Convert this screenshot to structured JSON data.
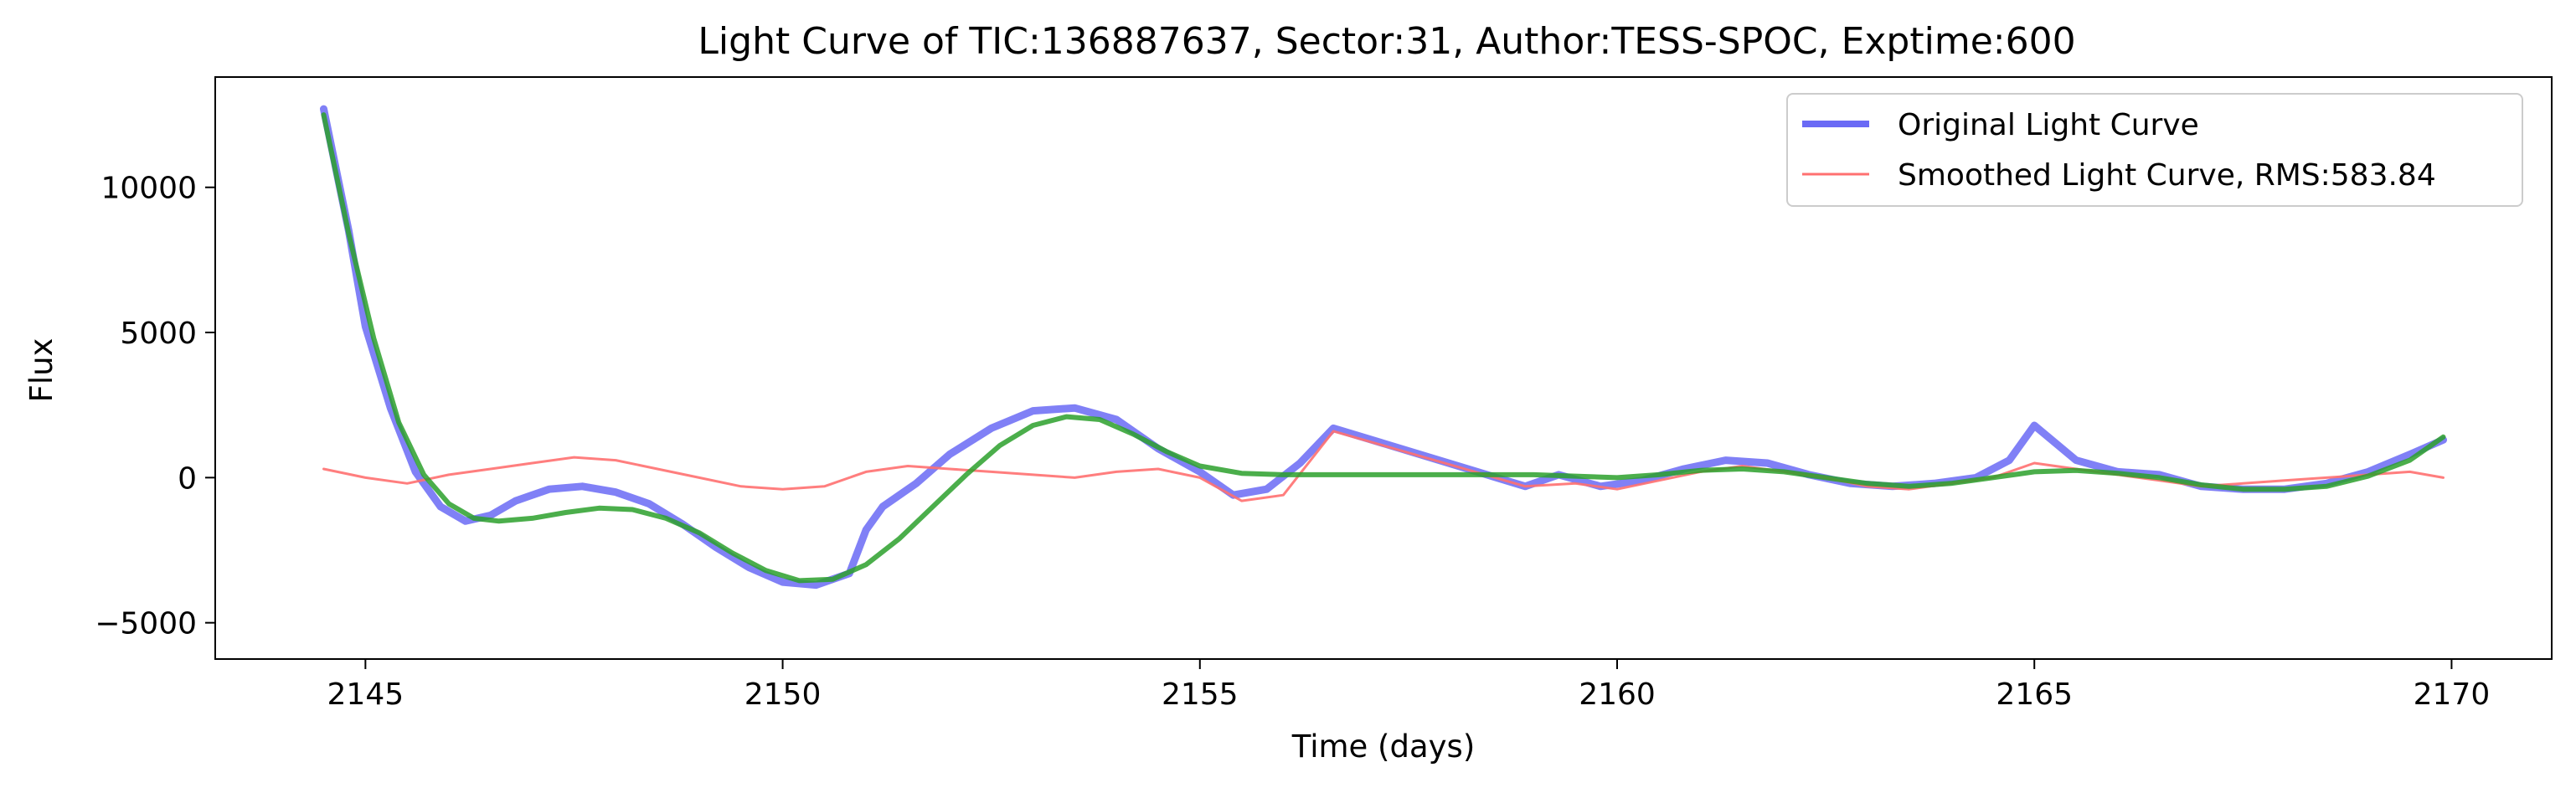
{
  "chart_data": {
    "type": "line",
    "title": "Light Curve of TIC:136887637, Sector:31, Author:TESS-SPOC, Exptime:600",
    "xlabel": "Time (days)",
    "ylabel": "Flux",
    "xlim": [
      2143.2,
      2171.2
    ],
    "ylim": [
      -6250,
      13800
    ],
    "xticks": [
      2145,
      2150,
      2155,
      2160,
      2165,
      2170
    ],
    "xtick_labels": [
      "2145",
      "2150",
      "2155",
      "2160",
      "2165",
      "2170"
    ],
    "yticks": [
      -5000,
      0,
      5000,
      10000
    ],
    "ytick_labels": [
      "−5000",
      "0",
      "5000",
      "10000"
    ],
    "grid": false,
    "legend_position": "top-right",
    "legend": [
      {
        "label": "Original Light Curve",
        "color": "#6a6af5"
      },
      {
        "label": "Smoothed Light Curve, RMS:583.84",
        "color": "#ff7070"
      }
    ],
    "series": [
      {
        "name": "Original Light Curve",
        "color": "#6a6af5",
        "x": [
          2144.5,
          2144.8,
          2145.0,
          2145.3,
          2145.6,
          2145.9,
          2146.2,
          2146.5,
          2146.8,
          2147.2,
          2147.6,
          2148.0,
          2148.4,
          2148.8,
          2149.2,
          2149.6,
          2150.0,
          2150.4,
          2150.8,
          2151.0,
          2151.2,
          2151.6,
          2152.0,
          2152.5,
          2153.0,
          2153.5,
          2154.0,
          2154.5,
          2155.0,
          2155.4,
          2155.8,
          2156.2,
          2156.6,
          2158.9,
          2159.3,
          2159.8,
          2160.3,
          2160.8,
          2161.3,
          2161.8,
          2162.3,
          2162.8,
          2163.3,
          2163.8,
          2164.3,
          2164.7,
          2165.0,
          2165.5,
          2166.0,
          2166.5,
          2167.0,
          2167.5,
          2168.0,
          2168.5,
          2169.0,
          2169.5,
          2169.9
        ],
        "y": [
          12700,
          8500,
          5200,
          2400,
          200,
          -1000,
          -1500,
          -1300,
          -800,
          -400,
          -300,
          -500,
          -900,
          -1600,
          -2400,
          -3100,
          -3600,
          -3700,
          -3300,
          -1800,
          -1000,
          -200,
          800,
          1700,
          2300,
          2400,
          2000,
          1000,
          200,
          -600,
          -400,
          500,
          1700,
          -300,
          100,
          -300,
          -100,
          300,
          600,
          500,
          100,
          -200,
          -300,
          -200,
          0,
          600,
          1800,
          600,
          200,
          100,
          -300,
          -400,
          -400,
          -200,
          200,
          800,
          1300
        ]
      },
      {
        "name": "Smoothed Light Curve, RMS:583.84",
        "color": "#ff7070",
        "x": [
          2144.5,
          2145.0,
          2145.5,
          2146.0,
          2146.5,
          2147.0,
          2147.5,
          2148.0,
          2148.5,
          2149.0,
          2149.5,
          2150.0,
          2150.5,
          2151.0,
          2151.5,
          2152.0,
          2152.5,
          2153.0,
          2153.5,
          2154.0,
          2154.5,
          2155.0,
          2155.5,
          2156.0,
          2156.6,
          2158.9,
          2159.5,
          2160.0,
          2160.5,
          2161.0,
          2161.5,
          2162.0,
          2162.5,
          2163.0,
          2163.5,
          2164.0,
          2164.5,
          2165.0,
          2165.5,
          2166.0,
          2166.5,
          2167.0,
          2167.5,
          2168.0,
          2168.5,
          2169.0,
          2169.5,
          2169.9
        ],
        "y": [
          300,
          0,
          -200,
          100,
          300,
          500,
          700,
          600,
          300,
          0,
          -300,
          -400,
          -300,
          200,
          400,
          300,
          200,
          100,
          0,
          200,
          300,
          0,
          -800,
          -600,
          1600,
          -300,
          -200,
          -400,
          -100,
          200,
          400,
          200,
          0,
          -300,
          -400,
          -200,
          0,
          500,
          300,
          100,
          -100,
          -300,
          -200,
          -100,
          0,
          100,
          200,
          0
        ]
      },
      {
        "name": "",
        "color": "#2ca02c",
        "x": [
          2144.5,
          2144.8,
          2145.1,
          2145.4,
          2145.7,
          2146.0,
          2146.3,
          2146.6,
          2147.0,
          2147.4,
          2147.8,
          2148.2,
          2148.6,
          2149.0,
          2149.4,
          2149.8,
          2150.2,
          2150.6,
          2151.0,
          2151.4,
          2151.8,
          2152.2,
          2152.6,
          2153.0,
          2153.4,
          2153.8,
          2154.2,
          2154.6,
          2155.0,
          2155.5,
          2156.0,
          2157.0,
          2158.0,
          2159.0,
          2159.5,
          2160.0,
          2160.5,
          2161.0,
          2161.5,
          2162.0,
          2162.5,
          2163.0,
          2163.5,
          2164.0,
          2164.5,
          2165.0,
          2165.5,
          2166.0,
          2166.5,
          2167.0,
          2167.5,
          2168.0,
          2168.5,
          2169.0,
          2169.5,
          2169.9
        ],
        "y": [
          12500,
          8400,
          4800,
          1900,
          100,
          -900,
          -1400,
          -1500,
          -1400,
          -1200,
          -1050,
          -1100,
          -1400,
          -1900,
          -2600,
          -3200,
          -3550,
          -3500,
          -3000,
          -2100,
          -1000,
          100,
          1100,
          1800,
          2100,
          2000,
          1500,
          900,
          400,
          150,
          100,
          100,
          100,
          100,
          50,
          0,
          100,
          250,
          300,
          200,
          0,
          -200,
          -300,
          -200,
          0,
          200,
          250,
          150,
          0,
          -250,
          -400,
          -400,
          -300,
          50,
          600,
          1400
        ]
      }
    ]
  }
}
